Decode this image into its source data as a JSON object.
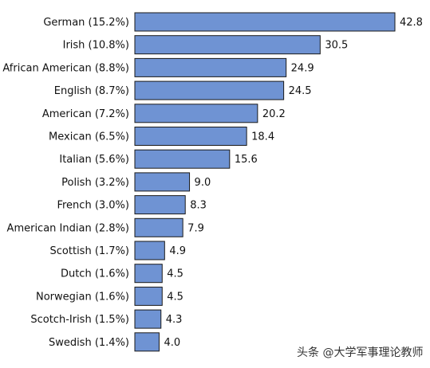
{
  "chart_data": {
    "type": "bar",
    "orientation": "horizontal",
    "categories": [
      "German (15.2%)",
      "Irish (10.8%)",
      "African American (8.8%)",
      "English (8.7%)",
      "American (7.2%)",
      "Mexican (6.5%)",
      "Italian (5.6%)",
      "Polish (3.2%)",
      "French (3.0%)",
      "American Indian (2.8%)",
      "Scottish (1.7%)",
      "Dutch (1.6%)",
      "Norwegian (1.6%)",
      "Scotch-Irish (1.5%)",
      "Swedish  (1.4%)"
    ],
    "values": [
      42.8,
      30.5,
      24.9,
      24.5,
      20.2,
      18.4,
      15.6,
      9.0,
      8.3,
      7.9,
      4.9,
      4.5,
      4.5,
      4.3,
      4.0
    ],
    "value_labels": [
      "42.8",
      "30.5",
      "24.9",
      "24.5",
      "20.2",
      "18.4",
      "15.6",
      "9.0",
      "8.3",
      "7.9",
      "4.9",
      "4.5",
      "4.5",
      "4.3",
      "4.0"
    ],
    "xlim": [
      0,
      42.8
    ],
    "grid": false,
    "legend": "none",
    "bar_color": "#6f93d3",
    "bar_border_color": "#1a1a1a"
  },
  "watermark": "头条 @大学军事理论教师"
}
